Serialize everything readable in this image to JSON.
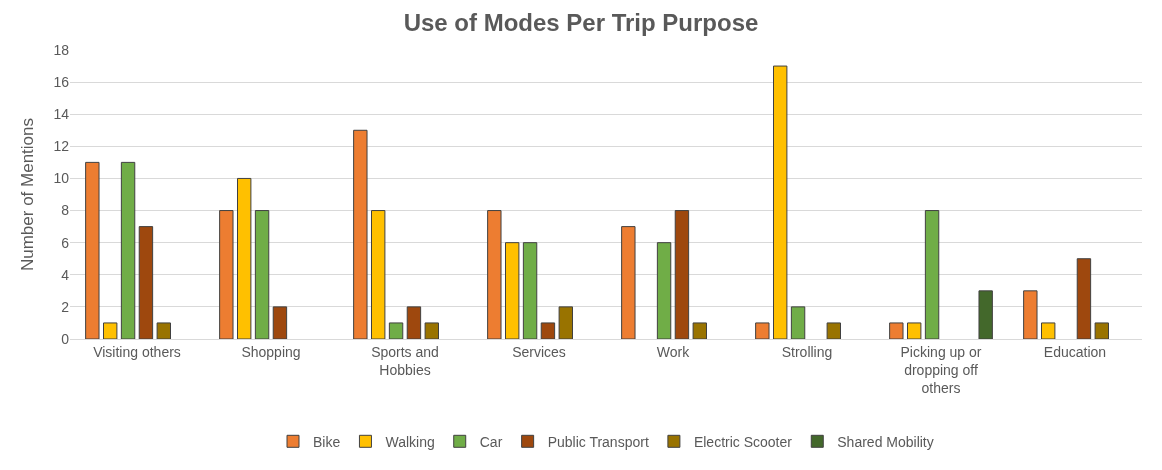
{
  "chart_data": {
    "type": "bar",
    "title": "Use of Modes Per Trip Purpose",
    "ylabel": "Number of Mentions",
    "categories": [
      "Visiting others",
      "Shopping",
      "Sports and Hobbies",
      "Services",
      "Work",
      "Strolling",
      "Picking up or dropping off others",
      "Education"
    ],
    "series": [
      {
        "name": "Bike",
        "color": "#ed7d31",
        "values": [
          11,
          8,
          13,
          8,
          7,
          1,
          1,
          3
        ]
      },
      {
        "name": "Walking",
        "color": "#ffc000",
        "values": [
          1,
          10,
          8,
          6,
          null,
          17,
          1,
          1
        ]
      },
      {
        "name": "Car",
        "color": "#70ad47",
        "values": [
          11,
          8,
          1,
          6,
          6,
          2,
          8,
          null
        ]
      },
      {
        "name": "Public Transport",
        "color": "#9e480e",
        "values": [
          7,
          2,
          2,
          1,
          8,
          null,
          null,
          5
        ]
      },
      {
        "name": "Electric Scooter",
        "color": "#997300",
        "values": [
          1,
          null,
          1,
          2,
          1,
          1,
          null,
          1
        ]
      },
      {
        "name": "Shared Mobility",
        "color": "#43682b",
        "values": [
          null,
          null,
          null,
          null,
          null,
          null,
          3,
          null
        ]
      }
    ],
    "ylim": [
      0,
      18
    ],
    "yticks": [
      0,
      2,
      4,
      6,
      8,
      10,
      12,
      14,
      16,
      18
    ],
    "grid": "y",
    "legend": "bottom"
  }
}
